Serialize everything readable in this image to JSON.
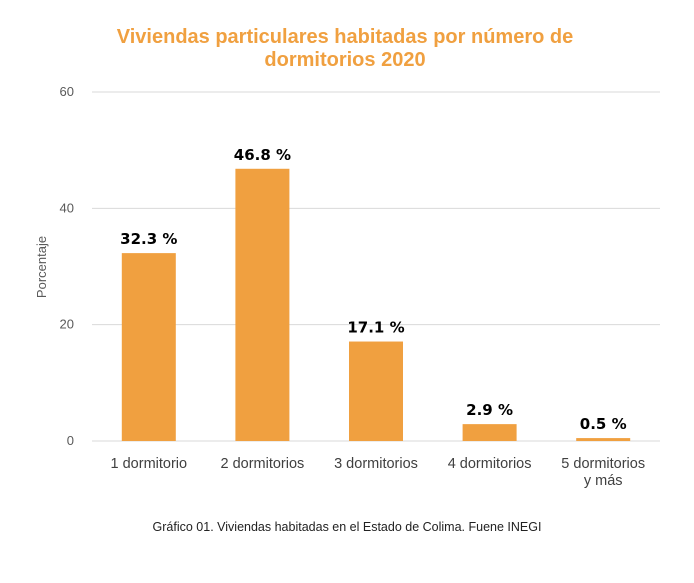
{
  "chart_data": {
    "type": "bar",
    "title": "Viviendas particulares habitadas por número de dormitorios 2020",
    "ylabel": "Porcentaje",
    "xlabel": "",
    "ylim": [
      0,
      60
    ],
    "yticks": [
      0,
      20,
      40,
      60
    ],
    "grid": true,
    "categories": [
      "1 dormitorio",
      "2 dormitorios",
      "3 dormitorios",
      "4 dormitorios",
      "5 dormitorios y más"
    ],
    "category_lines": [
      [
        "1 dormitorio"
      ],
      [
        "2 dormitorios"
      ],
      [
        "3 dormitorios"
      ],
      [
        "4 dormitorios"
      ],
      [
        "5 dormitorios",
        "y más"
      ]
    ],
    "values": [
      32.3,
      46.8,
      17.1,
      2.9,
      0.5
    ],
    "data_labels": [
      "32.3 %",
      "46.8 %",
      "17.1 %",
      "2.9 %",
      "0.5 %"
    ],
    "bar_color": "#f0a040",
    "title_color": "#f0a040"
  },
  "caption": "Gráfico 01. Viviendas habitadas en el Estado de Colima. Fuene INEGI"
}
